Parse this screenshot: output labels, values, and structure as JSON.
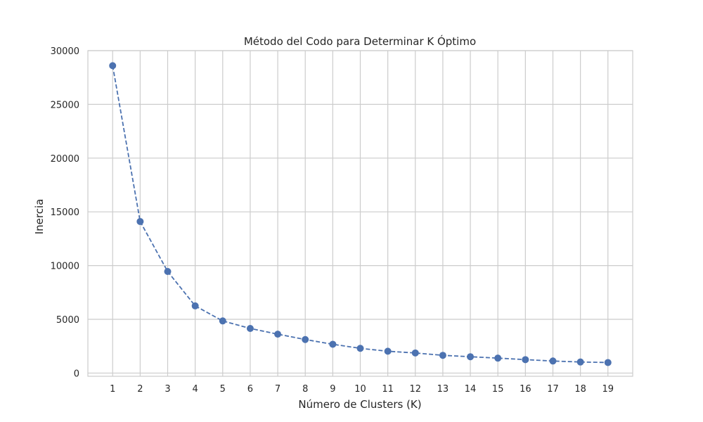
{
  "chart_data": {
    "type": "line",
    "title": "Método del Codo para Determinar K Óptimo",
    "xlabel": "Número de Clusters (K)",
    "ylabel": "Inercia",
    "x": [
      1,
      2,
      3,
      4,
      5,
      6,
      7,
      8,
      9,
      10,
      11,
      12,
      13,
      14,
      15,
      16,
      17,
      18,
      19
    ],
    "series": [
      {
        "values": [
          28600,
          14100,
          9450,
          6250,
          4850,
          4150,
          3620,
          3120,
          2680,
          2300,
          2030,
          1870,
          1650,
          1520,
          1390,
          1250,
          1120,
          1030,
          980
        ]
      }
    ],
    "x_ticks": [
      "1",
      "2",
      "3",
      "4",
      "5",
      "6",
      "7",
      "8",
      "9",
      "10",
      "11",
      "12",
      "13",
      "14",
      "15",
      "16",
      "17",
      "18",
      "19"
    ],
    "y_ticks": [
      "0",
      "5000",
      "10000",
      "15000",
      "20000",
      "25000",
      "30000"
    ],
    "xlim": [
      0.1,
      19.9
    ],
    "ylim": [
      -300,
      30000
    ],
    "grid": true,
    "line_style": "dashed",
    "marker": "circle",
    "colors": {
      "series": "#4c72b0",
      "grid": "#cccccc",
      "spine": "#cccccc",
      "text": "#262626"
    }
  }
}
